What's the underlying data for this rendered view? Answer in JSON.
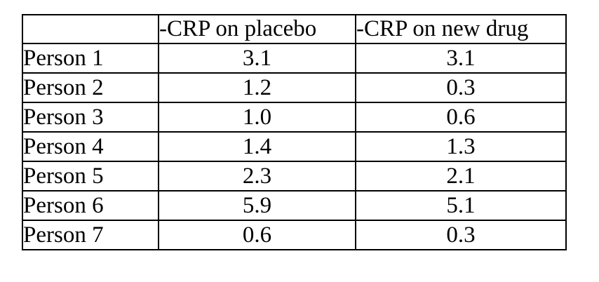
{
  "table": {
    "headers": {
      "corner": "",
      "placebo": "-CRP on placebo",
      "new_drug": "-CRP on new drug"
    },
    "rows": [
      {
        "label": "Person 1",
        "placebo": "3.1",
        "new_drug": "3.1"
      },
      {
        "label": "Person 2",
        "placebo": "1.2",
        "new_drug": "0.3"
      },
      {
        "label": "Person 3",
        "placebo": "1.0",
        "new_drug": "0.6"
      },
      {
        "label": "Person 4",
        "placebo": "1.4",
        "new_drug": "1.3"
      },
      {
        "label": "Person 5",
        "placebo": "2.3",
        "new_drug": "2.1"
      },
      {
        "label": "Person 6",
        "placebo": "5.9",
        "new_drug": "5.1"
      },
      {
        "label": "Person 7",
        "placebo": "0.6",
        "new_drug": "0.3"
      }
    ]
  },
  "chart_data": {
    "type": "table",
    "columns": [
      "",
      "-CRP on placebo",
      "-CRP on new drug"
    ],
    "row_labels": [
      "Person 1",
      "Person 2",
      "Person 3",
      "Person 4",
      "Person 5",
      "Person 6",
      "Person 7"
    ],
    "series": [
      {
        "name": "-CRP on placebo",
        "values": [
          3.1,
          1.2,
          1.0,
          1.4,
          2.3,
          5.9,
          0.6
        ]
      },
      {
        "name": "-CRP on new drug",
        "values": [
          3.1,
          0.3,
          0.6,
          1.3,
          2.1,
          5.1,
          0.3
        ]
      }
    ]
  },
  "colors": {
    "border": "#000000",
    "text": "#000000",
    "background": "#ffffff"
  }
}
